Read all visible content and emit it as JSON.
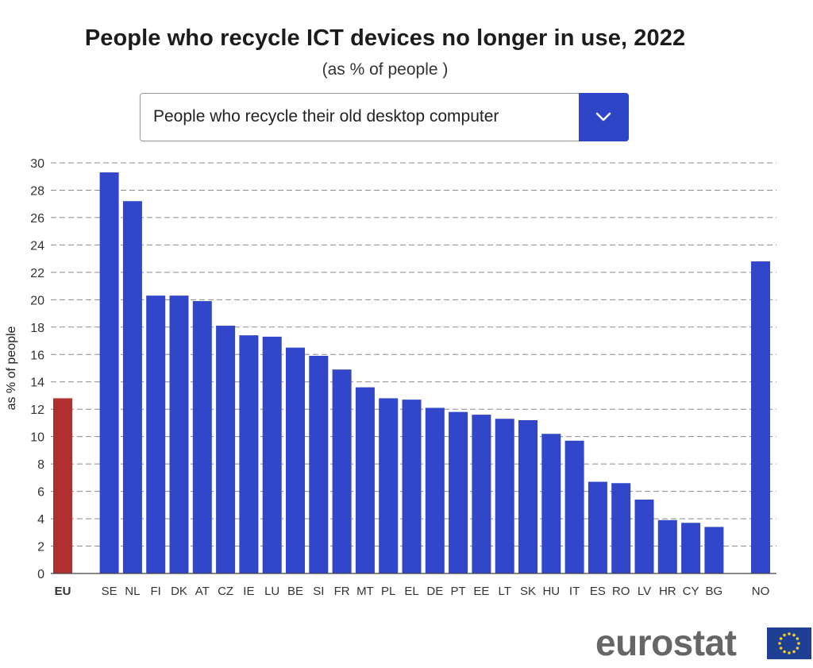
{
  "title": "People who recycle ICT devices no longer in use, 2022",
  "subtitle": "(as % of people )",
  "dropdown": {
    "selected": "People who recycle their old desktop computer"
  },
  "logo": {
    "text": "eurostat"
  },
  "colors": {
    "eu_bar": "#b22f2f",
    "country_bar": "#3146c8",
    "accent": "#2f45c8"
  },
  "chart_data": {
    "type": "bar",
    "ylabel": "as % of people",
    "xlabel": "",
    "ylim": [
      0,
      30
    ],
    "yticks": [
      0,
      2,
      4,
      6,
      8,
      10,
      12,
      14,
      16,
      18,
      20,
      22,
      24,
      26,
      28,
      30
    ],
    "grid": "horizontal dashed",
    "categories": [
      "EU",
      "SE",
      "NL",
      "FI",
      "DK",
      "AT",
      "CZ",
      "IE",
      "LU",
      "BE",
      "SI",
      "FR",
      "MT",
      "PL",
      "EL",
      "DE",
      "PT",
      "EE",
      "LT",
      "SK",
      "HU",
      "IT",
      "ES",
      "RO",
      "LV",
      "HR",
      "CY",
      "BG",
      "NO"
    ],
    "values": [
      12.8,
      29.3,
      27.2,
      20.3,
      20.3,
      19.9,
      18.1,
      17.4,
      17.3,
      16.5,
      15.9,
      14.9,
      13.6,
      12.8,
      12.7,
      12.1,
      11.8,
      11.6,
      11.3,
      11.2,
      10.2,
      9.7,
      6.7,
      6.6,
      5.4,
      3.9,
      3.7,
      3.4,
      22.8
    ]
  }
}
